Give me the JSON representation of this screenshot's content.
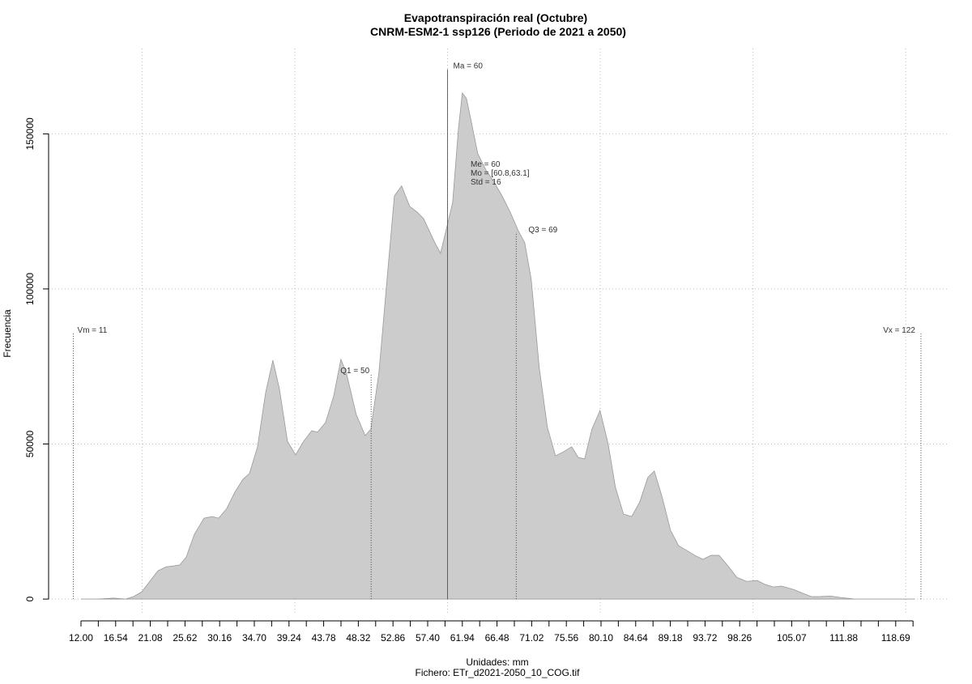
{
  "chart_data": {
    "type": "area",
    "title": "Evapotranspiración real (Octubre)",
    "subtitle": "CNRM-ESM2-1 ssp126 (Periodo de 2021 a 2050)",
    "xlabel": "Unidades: mm",
    "caption": "Fichero: ETr_d2021-2050_10_COG.tif",
    "ylabel": "Frecuencia",
    "xlim": [
      7.76,
      125.5
    ],
    "ylim": [
      -5200,
      177500
    ],
    "yticks": [
      0,
      50000,
      100000,
      150000
    ],
    "xticks": [
      {
        "value": 12,
        "label": "12.00"
      },
      {
        "value": 16.54,
        "label": "16.54"
      },
      {
        "value": 21.08,
        "label": "21.08"
      },
      {
        "value": 25.62,
        "label": "25.62"
      },
      {
        "value": 30.16,
        "label": "30.16"
      },
      {
        "value": 34.7,
        "label": "34.70"
      },
      {
        "value": 39.24,
        "label": "39.24"
      },
      {
        "value": 43.78,
        "label": "43.78"
      },
      {
        "value": 48.32,
        "label": "48.32"
      },
      {
        "value": 52.86,
        "label": "52.86"
      },
      {
        "value": 57.4,
        "label": "57.40"
      },
      {
        "value": 61.94,
        "label": "61.94"
      },
      {
        "value": 66.48,
        "label": "66.48"
      },
      {
        "value": 71.02,
        "label": "71.02"
      },
      {
        "value": 75.56,
        "label": "75.56"
      },
      {
        "value": 80.1,
        "label": "80.10"
      },
      {
        "value": 84.64,
        "label": "84.64"
      },
      {
        "value": 89.18,
        "label": "89.18"
      },
      {
        "value": 93.72,
        "label": "93.72"
      },
      {
        "value": 98.26,
        "label": "98.26"
      },
      {
        "value": 105.07,
        "label": "105.07"
      },
      {
        "value": 111.88,
        "label": "111.88"
      },
      {
        "value": 118.69,
        "label": "118.69"
      }
    ],
    "xminorticks": [
      14.27,
      18.81,
      23.35,
      27.89,
      32.43,
      36.97,
      41.51,
      46.05,
      50.59,
      55.13,
      59.67,
      64.21,
      68.75,
      73.29,
      77.83,
      82.37,
      86.91,
      91.45,
      95.99,
      100.53,
      102.8,
      107.34,
      109.61,
      114.15,
      116.42,
      120.96
    ],
    "xgrid": [
      20,
      40,
      60,
      80,
      100,
      120
    ],
    "grid": true,
    "series": [
      {
        "color": "#cccccc",
        "x": [
          12.0,
          14.12,
          16.24,
          17.83,
          18.89,
          19.95,
          21.01,
          22.07,
          23.13,
          24.19,
          24.94,
          25.79,
          26.85,
          28.12,
          29.18,
          30.03,
          31.09,
          32.15,
          33.21,
          34.06,
          35.12,
          36.18,
          37.13,
          37.98,
          39.04,
          40.1,
          41.16,
          42.22,
          42.96,
          44.02,
          45.08,
          46.04,
          46.78,
          48.05,
          49.22,
          49.96,
          51.02,
          52.08,
          53.04,
          53.99,
          55.05,
          56.01,
          56.86,
          57.6,
          58.34,
          59.08,
          59.93,
          60.67,
          61.42,
          61.94,
          62.48,
          63.11,
          63.96,
          65.02,
          66.08,
          67.14,
          68.2,
          69.26,
          70.11,
          70.96,
          72.02,
          73.08,
          74.14,
          75.2,
          76.26,
          77.11,
          77.96,
          78.91,
          79.97,
          81.03,
          81.99,
          83.05,
          84.11,
          85.17,
          86.23,
          87.08,
          88.14,
          89.2,
          90.26,
          91.32,
          92.38,
          93.44,
          94.5,
          95.56,
          96.62,
          97.89,
          99.17,
          100.54,
          101.6,
          102.66,
          103.73,
          105.32,
          106.58,
          107.64,
          108.71,
          110.09,
          111.47,
          113.27,
          115.92,
          121.22
        ],
        "values": [
          0,
          0,
          300,
          0,
          800,
          2300,
          5700,
          9100,
          10400,
          10700,
          11000,
          13600,
          20900,
          26100,
          26600,
          26100,
          29200,
          34500,
          38600,
          40500,
          49100,
          66600,
          77000,
          67900,
          50900,
          46500,
          50900,
          54300,
          53800,
          56900,
          65300,
          77300,
          72600,
          59500,
          52700,
          54800,
          73100,
          103100,
          130000,
          133200,
          126600,
          124800,
          122700,
          118800,
          114900,
          111500,
          120100,
          127900,
          151400,
          163200,
          161400,
          154000,
          143600,
          138400,
          134500,
          130000,
          124800,
          118800,
          114900,
          103100,
          74400,
          55400,
          46200,
          47500,
          49100,
          45700,
          45200,
          54800,
          60800,
          50100,
          36000,
          27400,
          26600,
          31300,
          39200,
          41300,
          32600,
          22200,
          17200,
          15700,
          14100,
          12800,
          14100,
          14100,
          11000,
          7000,
          5700,
          6000,
          4700,
          3900,
          4200,
          3100,
          1800,
          800,
          800,
          1000,
          500,
          0,
          0,
          0
        ]
      }
    ],
    "stat_lines": [
      {
        "label": "Vm = 11",
        "x": 11,
        "top": 85600
      },
      {
        "label": "Q1 = 50",
        "x": 50,
        "top": 72600
      },
      {
        "label": "Ma = 60",
        "x": 60,
        "top": 170800
      },
      {
        "label": "Q3 = 69",
        "x": 69,
        "top": 118300
      },
      {
        "label": "Vx = 122",
        "x": 122,
        "top": 85600
      }
    ],
    "stats_text": [
      "Me = 60",
      "Mo = [60.8,63.1]",
      "Std = 16"
    ]
  }
}
